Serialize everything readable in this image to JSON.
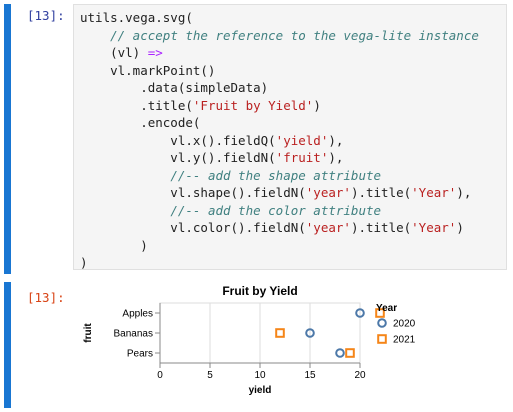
{
  "input_cell": {
    "prompt": "[13]:",
    "code_lines": [
      [
        {
          "t": "utils.vega.svg("
        }
      ],
      [
        {
          "t": "    "
        },
        {
          "t": "// accept the reference to the vega-lite instance",
          "c": "cm"
        }
      ],
      [
        {
          "t": "    (vl) "
        },
        {
          "t": "=>",
          "c": "op"
        }
      ],
      [
        {
          "t": "    vl.markPoint()"
        }
      ],
      [
        {
          "t": "        .data(simpleData)"
        }
      ],
      [
        {
          "t": "        .title("
        },
        {
          "t": "'Fruit by Yield'",
          "c": "str"
        },
        {
          "t": ")"
        }
      ],
      [
        {
          "t": "        .encode("
        }
      ],
      [
        {
          "t": "            vl.x().fieldQ("
        },
        {
          "t": "'yield'",
          "c": "str"
        },
        {
          "t": "),"
        }
      ],
      [
        {
          "t": "            vl.y().fieldN("
        },
        {
          "t": "'fruit'",
          "c": "str"
        },
        {
          "t": "),"
        }
      ],
      [
        {
          "t": "            "
        },
        {
          "t": "//-- add the shape attribute",
          "c": "cm"
        }
      ],
      [
        {
          "t": "            vl.shape().fieldN("
        },
        {
          "t": "'year'",
          "c": "str"
        },
        {
          "t": ").title("
        },
        {
          "t": "'Year'",
          "c": "str"
        },
        {
          "t": "),"
        }
      ],
      [
        {
          "t": "            "
        },
        {
          "t": "//-- add the color attribute",
          "c": "cm"
        }
      ],
      [
        {
          "t": "            vl.color().fieldN("
        },
        {
          "t": "'year'",
          "c": "str"
        },
        {
          "t": ").title("
        },
        {
          "t": "'Year'",
          "c": "str"
        },
        {
          "t": ")"
        }
      ],
      [
        {
          "t": "        )"
        }
      ],
      [
        {
          "t": ")"
        }
      ]
    ]
  },
  "output_cell": {
    "prompt": "[13]:"
  },
  "chart_data": {
    "type": "scatter",
    "title": "Fruit by Yield",
    "xlabel": "yield",
    "ylabel": "fruit",
    "xlim": [
      0,
      20
    ],
    "x_ticks": [
      "0",
      "5",
      "10",
      "15",
      "20"
    ],
    "categories": [
      "Apples",
      "Bananas",
      "Pears"
    ],
    "grid": true,
    "legend": {
      "title": "Year",
      "placement": "right",
      "entries": [
        {
          "label": "2020",
          "shape": "circle",
          "color": "#4c78a8"
        },
        {
          "label": "2021",
          "shape": "square",
          "color": "#f58518"
        }
      ]
    },
    "series": [
      {
        "name": "2020",
        "shape": "circle",
        "color": "#4c78a8",
        "points": [
          {
            "x": 20,
            "y": "Apples"
          },
          {
            "x": 15,
            "y": "Bananas"
          },
          {
            "x": 18,
            "y": "Pears"
          }
        ]
      },
      {
        "name": "2021",
        "shape": "square",
        "color": "#f58518",
        "points": [
          {
            "x": 22,
            "y": "Apples"
          },
          {
            "x": 12,
            "y": "Bananas"
          },
          {
            "x": 19,
            "y": "Pears"
          }
        ]
      }
    ]
  }
}
